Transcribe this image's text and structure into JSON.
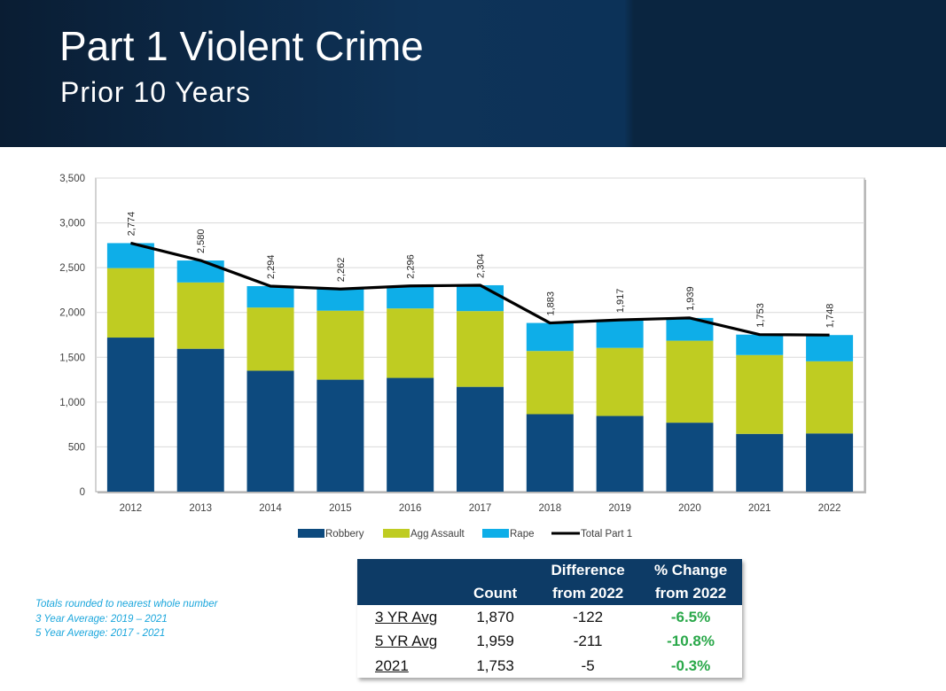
{
  "page": {
    "title": "Part 1 Violent Crime",
    "subtitle": "Prior 10 Years"
  },
  "colors": {
    "robbery": "#0d4a7e",
    "agg_assault": "#bfcc22",
    "rape": "#0eaee8",
    "total_line": "#000000",
    "header_bg": "#0d3b66",
    "positive_change": "#2aa84a",
    "notes_text": "#1aa6dc"
  },
  "chart_data": {
    "type": "bar",
    "stacked": true,
    "categories": [
      "2012",
      "2013",
      "2014",
      "2015",
      "2016",
      "2017",
      "2018",
      "2019",
      "2020",
      "2021",
      "2022"
    ],
    "series": [
      {
        "name": "Robbery",
        "values": [
          1720,
          1595,
          1350,
          1250,
          1270,
          1170,
          865,
          845,
          770,
          645,
          650
        ]
      },
      {
        "name": "Agg Assault",
        "values": [
          775,
          740,
          705,
          770,
          775,
          845,
          705,
          760,
          915,
          880,
          805
        ]
      },
      {
        "name": "Rape",
        "values": [
          279,
          245,
          239,
          242,
          251,
          289,
          313,
          312,
          254,
          228,
          293
        ]
      }
    ],
    "line": {
      "name": "Total Part 1",
      "values": [
        2774,
        2580,
        2294,
        2262,
        2296,
        2304,
        1883,
        1917,
        1939,
        1753,
        1748
      ],
      "labels": [
        "2,774",
        "2,580",
        "2,294",
        "2,262",
        "2,296",
        "2,304",
        "1,883",
        "1,917",
        "1,939",
        "1,753",
        "1,748"
      ]
    },
    "yticks": [
      0,
      500,
      1000,
      1500,
      2000,
      2500,
      3000,
      3500
    ],
    "ytick_labels": [
      "0",
      "500",
      "1,000",
      "1,500",
      "2,000",
      "2,500",
      "3,000",
      "3,500"
    ],
    "ylim": [
      0,
      3500
    ],
    "grid": true,
    "legend_position": "bottom"
  },
  "notes": [
    "Totals rounded to nearest whole number",
    "3 Year Average: 2019 – 2021",
    "5 Year Average: 2017 - 2021"
  ],
  "summary_table": {
    "headers": {
      "count": "Count",
      "diff_line1": "Difference",
      "diff_line2": "from 2022",
      "pct_line1": "% Change",
      "pct_line2": "from 2022"
    },
    "rows": [
      {
        "label": "3 YR Avg",
        "count": "1,870",
        "diff": "-122",
        "pct": "-6.5%"
      },
      {
        "label": "5 YR Avg",
        "count": "1,959",
        "diff": "-211",
        "pct": "-10.8%"
      },
      {
        "label": "2021",
        "count": "1,753",
        "diff": "-5",
        "pct": "-0.3%"
      }
    ]
  }
}
